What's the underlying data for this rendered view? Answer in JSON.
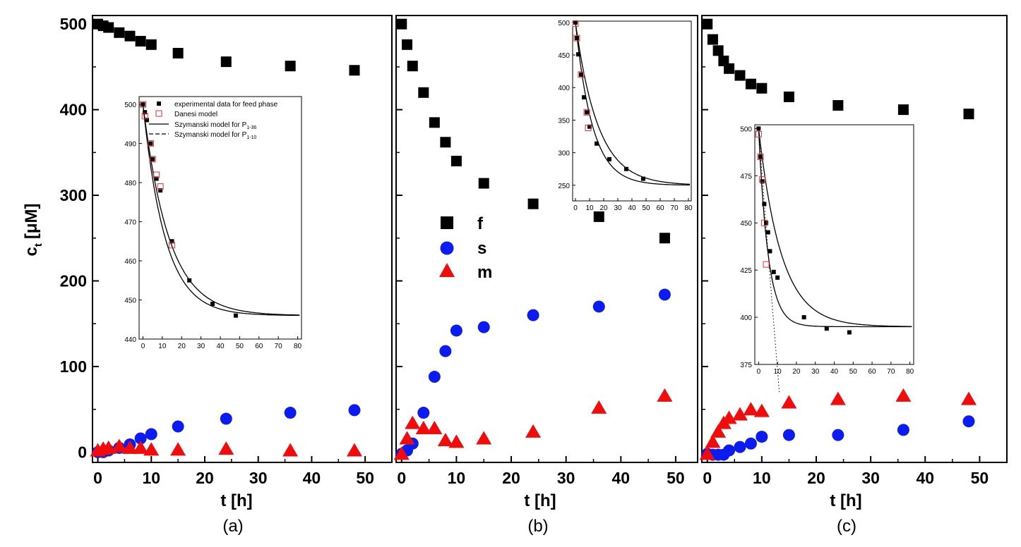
{
  "colors": {
    "f": "#000000",
    "s": "#0b1cf2",
    "m": "#f20b0b",
    "danesi": "#e53030"
  },
  "shared": {
    "ylabel_main": "c",
    "ylabel_sub": "t",
    "ylabel_unit": "[μM]",
    "xlabel": "t [h]",
    "legend": [
      {
        "key": "f",
        "label": "f"
      },
      {
        "key": "s",
        "label": "s"
      },
      {
        "key": "m",
        "label": "m"
      }
    ],
    "inset_legend": {
      "experimental": "experimental data for feed phase",
      "danesi": "Danesi model",
      "szym_main": "Szymanski model for P",
      "szym_sub1": "1-36",
      "szym_sub2": "1-10"
    }
  },
  "chart_data": [
    {
      "type": "scatter",
      "panel_label": "(a)",
      "xlim": [
        -1,
        55
      ],
      "ylim": [
        -12,
        510
      ],
      "xticks": [
        "0",
        "10",
        "20",
        "30",
        "40",
        "50"
      ],
      "yticks": [
        "0",
        "100",
        "200",
        "300",
        "400",
        "500"
      ],
      "series": [
        {
          "name": "f",
          "marker": "square",
          "x": [
            0,
            1,
            2,
            4,
            6,
            8,
            10,
            15,
            24,
            36,
            48
          ],
          "y": [
            500,
            498,
            496,
            490,
            486,
            480,
            476,
            466,
            456,
            451,
            446
          ]
        },
        {
          "name": "s",
          "marker": "circle",
          "x": [
            0,
            1,
            2,
            4,
            6,
            8,
            10,
            15,
            24,
            36,
            48
          ],
          "y": [
            0,
            0,
            2,
            5,
            9,
            16,
            21,
            30,
            39,
            46,
            49
          ]
        },
        {
          "name": "m",
          "marker": "triangle",
          "x": [
            0,
            1,
            2,
            4,
            6,
            8,
            10,
            15,
            24,
            36,
            48
          ],
          "y": [
            2,
            4,
            5,
            7,
            5,
            5,
            3,
            3,
            4,
            2,
            2
          ]
        }
      ],
      "inset": {
        "xlim": [
          -2,
          82
        ],
        "ylim": [
          440,
          502
        ],
        "xticks": [
          "0",
          "10",
          "20",
          "30",
          "40",
          "50",
          "60",
          "70",
          "80"
        ],
        "yticks": [
          "440",
          "450",
          "460",
          "470",
          "480",
          "490",
          "500"
        ],
        "data": {
          "x": [
            0,
            1,
            2,
            4,
            5,
            7,
            9,
            15,
            24,
            36,
            48
          ],
          "y": [
            500,
            498,
            496,
            490,
            486,
            481,
            478,
            465,
            455,
            449,
            446
          ]
        },
        "danesi": {
          "x": [
            0,
            1,
            4,
            5,
            7,
            9,
            15
          ],
          "y": [
            500,
            497,
            490,
            486,
            482,
            479,
            464
          ]
        },
        "model1": {
          "y0": 500,
          "yinf": 446,
          "tau": 11.5
        },
        "model2": {
          "y0": 500,
          "yinf": 446,
          "tau": 13.5
        },
        "legend_position": "top"
      }
    },
    {
      "type": "scatter",
      "panel_label": "(b)",
      "xlim": [
        -1,
        54
      ],
      "ylim": [
        -12,
        510
      ],
      "xticks": [
        "0",
        "10",
        "20",
        "30",
        "40",
        "50"
      ],
      "yticks": [],
      "series": [
        {
          "name": "f",
          "marker": "square",
          "x": [
            0,
            1,
            2,
            4,
            6,
            8,
            10,
            15,
            24,
            36,
            48
          ],
          "y": [
            500,
            476,
            451,
            420,
            385,
            362,
            340,
            314,
            290,
            275,
            250
          ]
        },
        {
          "name": "s",
          "marker": "circle",
          "x": [
            0,
            1,
            2,
            4,
            6,
            8,
            10,
            15,
            24,
            36,
            48
          ],
          "y": [
            -2,
            2,
            10,
            46,
            88,
            118,
            142,
            146,
            160,
            170,
            184
          ]
        },
        {
          "name": "m",
          "marker": "triangle",
          "x": [
            0,
            1,
            2,
            4,
            6,
            8,
            10,
            15,
            24,
            36,
            48
          ],
          "y": [
            -2,
            16,
            34,
            28,
            28,
            14,
            12,
            16,
            24,
            52,
            66
          ]
        }
      ],
      "inset": {
        "xlim": [
          -2,
          82
        ],
        "ylim": [
          226,
          502
        ],
        "xticks": [
          "0",
          "10",
          "20",
          "30",
          "40",
          "50",
          "60",
          "70",
          "80"
        ],
        "yticks": [
          "250",
          "300",
          "350",
          "400",
          "450",
          "500"
        ],
        "data": {
          "x": [
            0,
            1,
            2,
            4,
            6,
            8,
            10,
            15,
            24,
            36,
            48
          ],
          "y": [
            500,
            476,
            451,
            420,
            385,
            362,
            340,
            314,
            290,
            275,
            260
          ]
        },
        "danesi": {
          "x": [
            0,
            1,
            4,
            8,
            9
          ],
          "y": [
            498,
            476,
            420,
            362,
            338
          ]
        },
        "model1": {
          "y0": 500,
          "yinf": 250,
          "tau": 12
        },
        "model2": {
          "y0": 500,
          "yinf": 250,
          "tau": 16
        },
        "legend_position": "none"
      }
    },
    {
      "type": "scatter",
      "panel_label": "(c)",
      "xlim": [
        -1,
        55
      ],
      "ylim": [
        -12,
        510
      ],
      "xticks": [
        "0",
        "10",
        "20",
        "30",
        "40",
        "50"
      ],
      "yticks": [],
      "series": [
        {
          "name": "f",
          "marker": "square",
          "x": [
            0,
            1,
            2,
            3,
            4,
            6,
            8,
            10,
            15,
            24,
            36,
            48
          ],
          "y": [
            500,
            482,
            469,
            457,
            448,
            440,
            430,
            425,
            415,
            405,
            400,
            395
          ]
        },
        {
          "name": "s",
          "marker": "circle",
          "x": [
            0,
            1,
            2,
            3,
            4,
            6,
            8,
            10,
            15,
            24,
            36,
            48
          ],
          "y": [
            -2,
            -3,
            -3,
            -3,
            2,
            6,
            10,
            18,
            20,
            20,
            26,
            36
          ]
        },
        {
          "name": "m",
          "marker": "triangle",
          "x": [
            0,
            1,
            2,
            3,
            4,
            6,
            8,
            10,
            15,
            24,
            36,
            48
          ],
          "y": [
            -2,
            12,
            24,
            34,
            40,
            44,
            50,
            48,
            58,
            62,
            66,
            62
          ]
        }
      ],
      "inset": {
        "xlim": [
          -2,
          82
        ],
        "ylim": [
          375,
          502
        ],
        "xticks": [
          "0",
          "10",
          "20",
          "30",
          "40",
          "50",
          "60",
          "70",
          "80"
        ],
        "yticks": [
          "375",
          "400",
          "425",
          "450",
          "475",
          "500"
        ],
        "data": {
          "x": [
            0,
            1,
            2,
            3,
            4,
            5,
            6,
            8,
            10,
            24,
            36,
            48
          ],
          "y": [
            500,
            485,
            472,
            460,
            450,
            445,
            435,
            424,
            421,
            400,
            394,
            392
          ]
        },
        "danesi": {
          "x": [
            0,
            1,
            2,
            3,
            4
          ],
          "y": [
            497,
            485,
            473,
            450,
            428
          ]
        },
        "model1": {
          "y0": 500,
          "yinf": 395,
          "tau": 5
        },
        "model2": {
          "y0": 500,
          "yinf": 395,
          "tau": 12
        },
        "legend_position": "none"
      }
    }
  ]
}
